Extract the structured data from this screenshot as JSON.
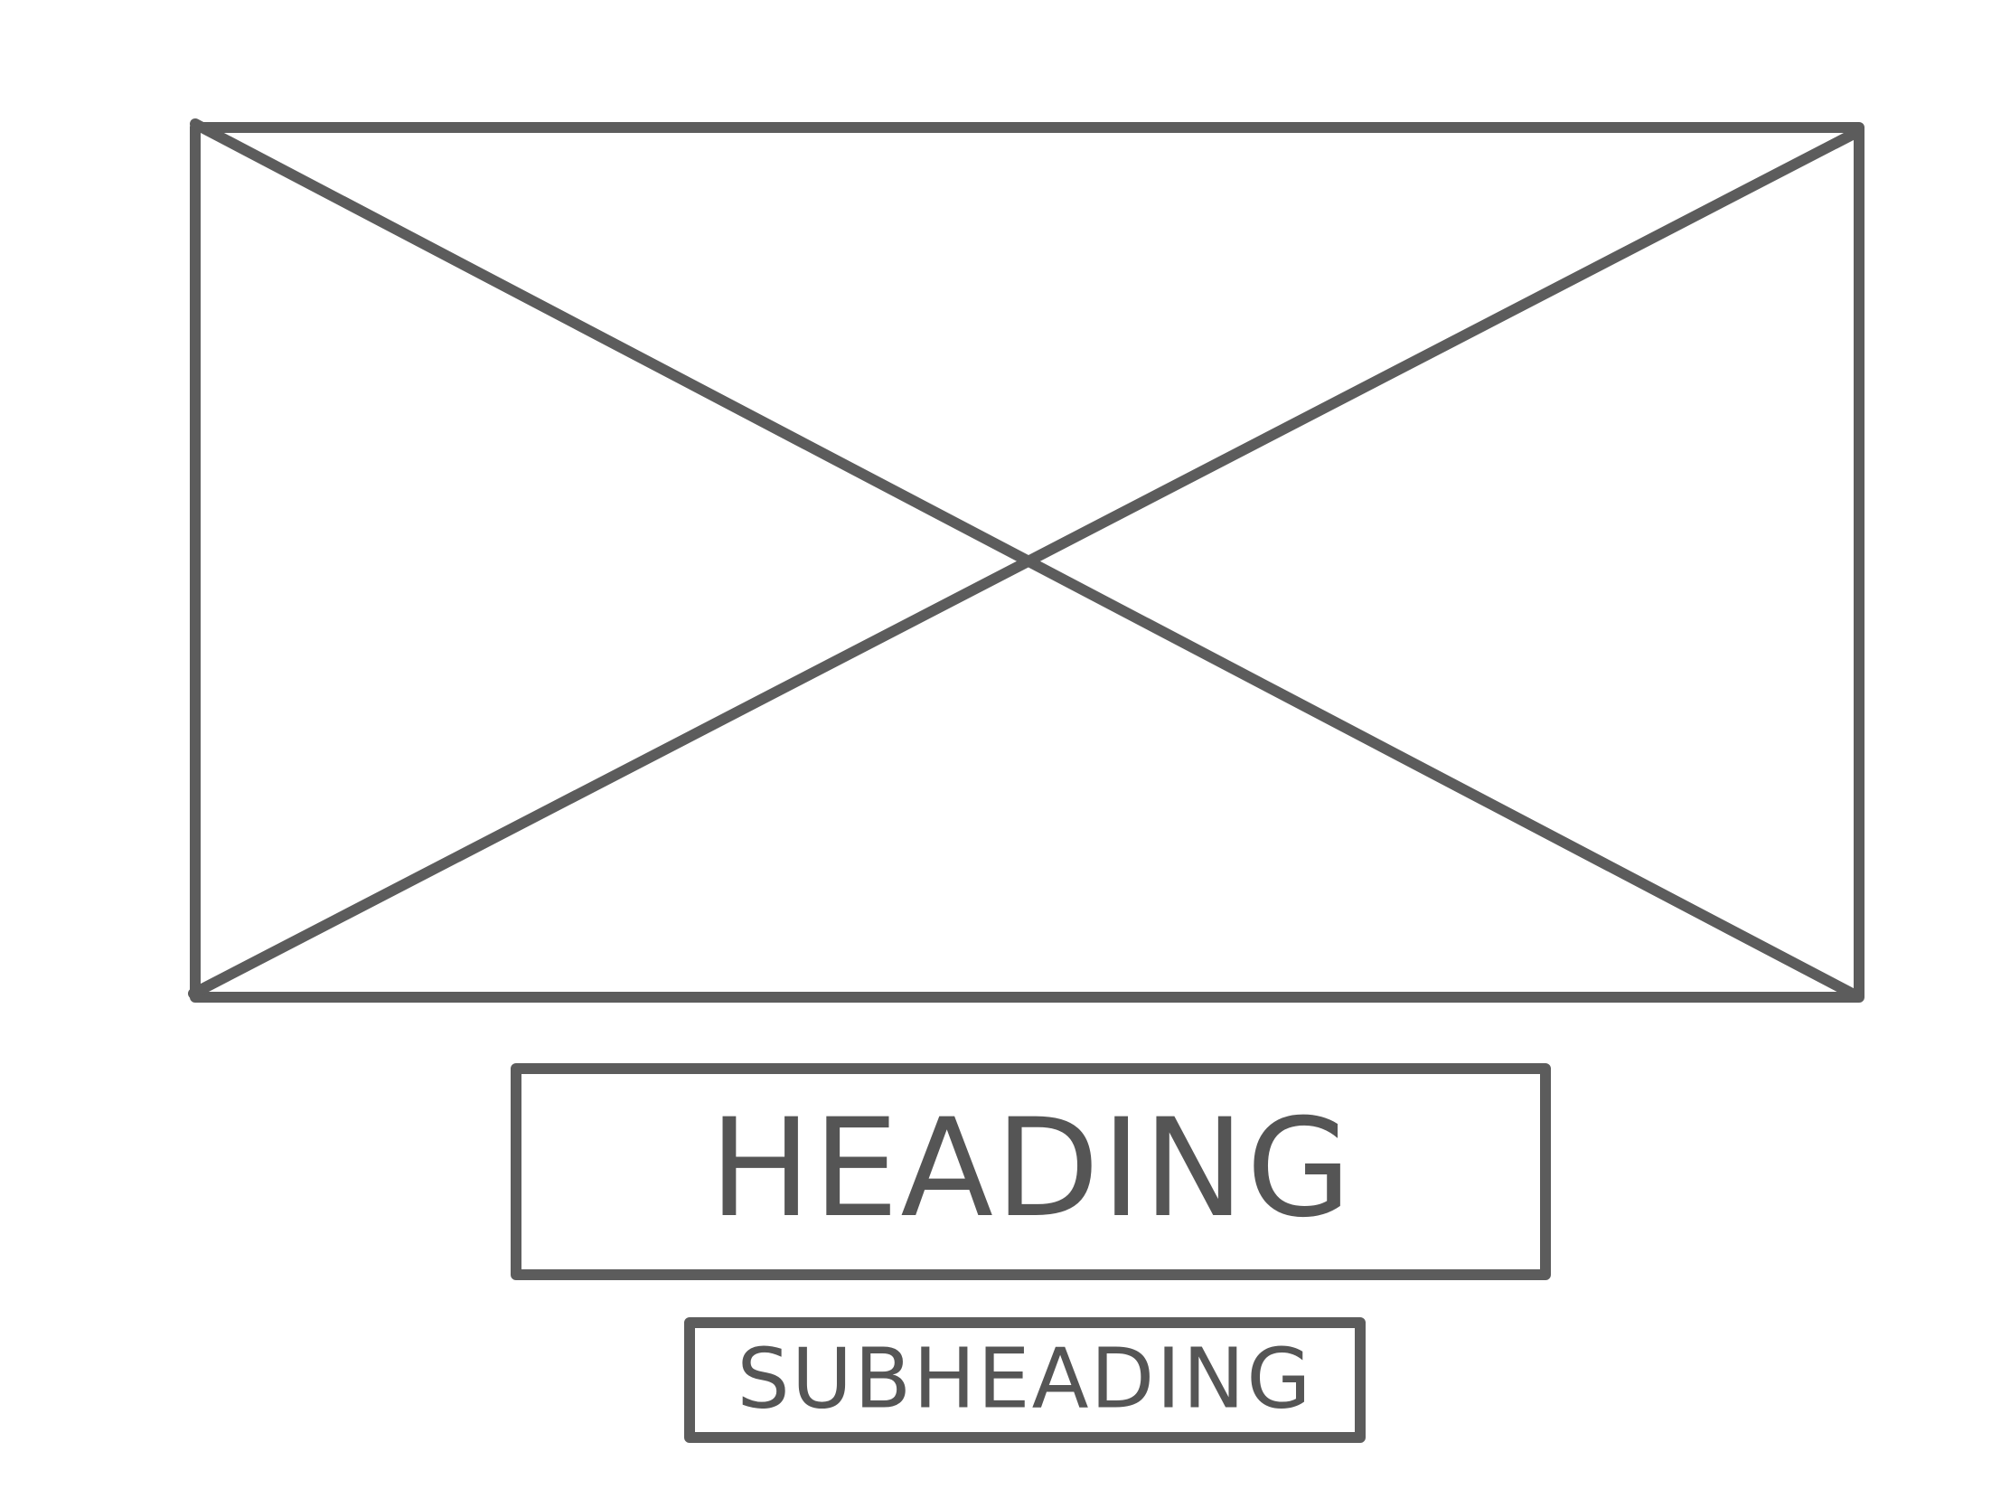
{
  "wireframe": {
    "heading": "HEADING",
    "subheading": "SUBHEADING",
    "stroke_color": "#5c5c5c",
    "background_color": "#ffffff"
  }
}
